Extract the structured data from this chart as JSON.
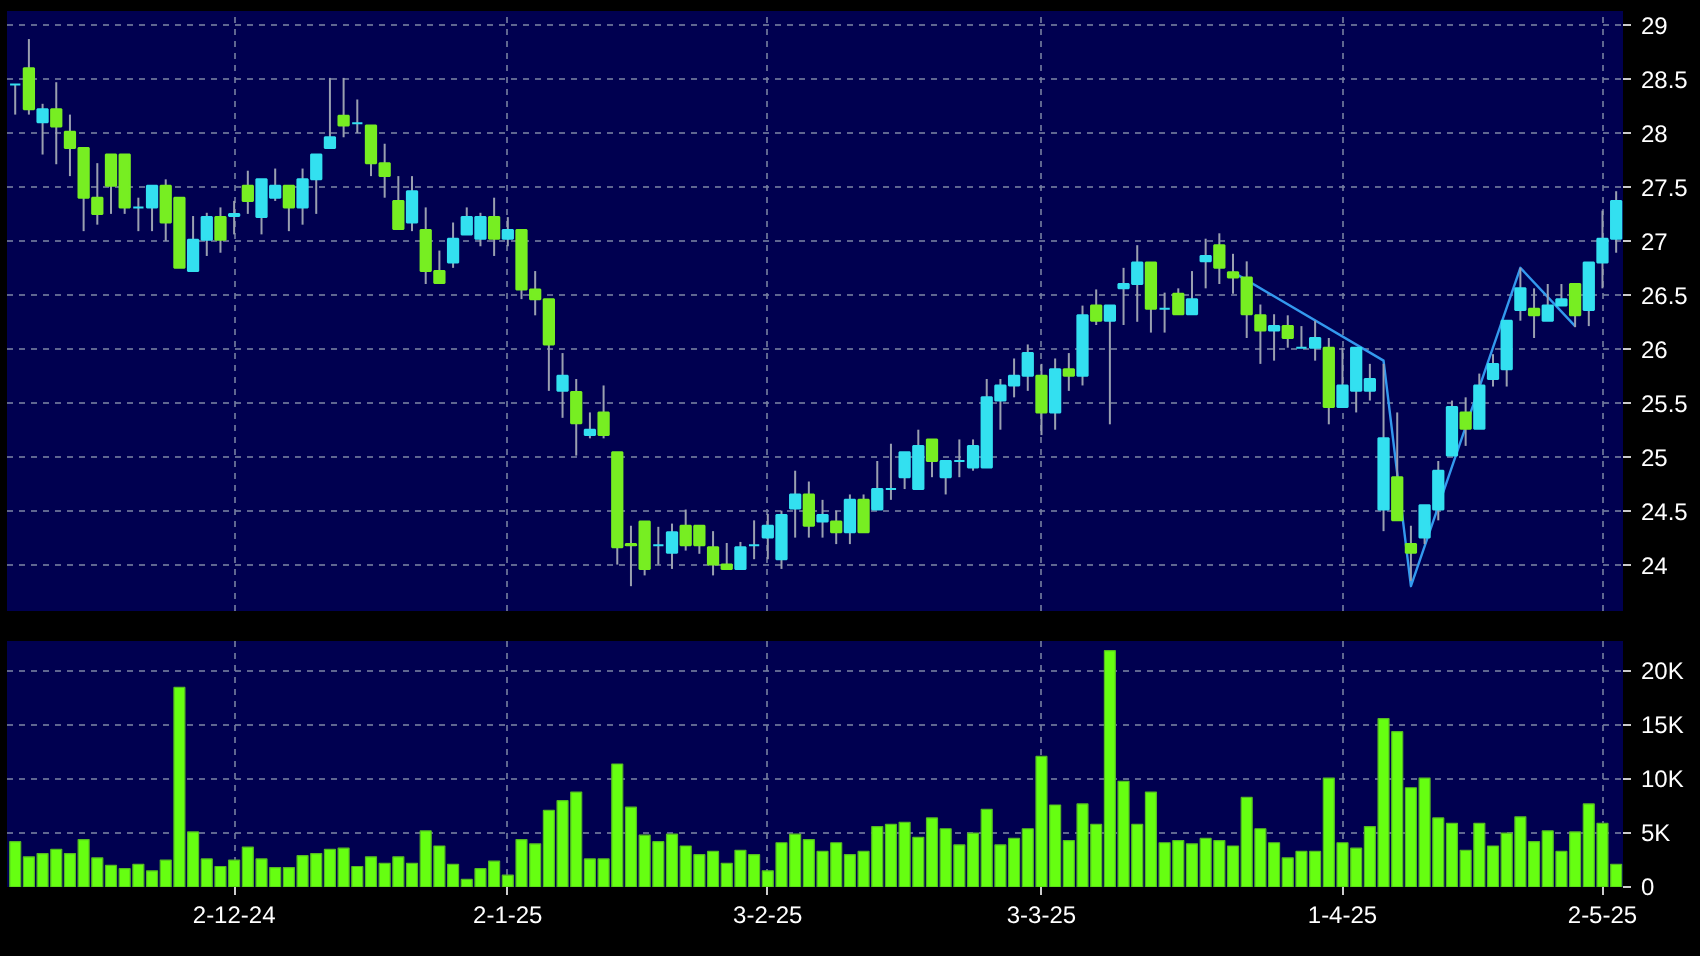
{
  "chart_data": [
    {
      "type": "candlestick",
      "categories": [
        null,
        null,
        null,
        null,
        null,
        null,
        null,
        null,
        null,
        null,
        null,
        null,
        null,
        null,
        null,
        null,
        null,
        null,
        null,
        null,
        null,
        null,
        null,
        null,
        null,
        null,
        null,
        null,
        null,
        null,
        null,
        null,
        null,
        null,
        null,
        null,
        null,
        null,
        null,
        null,
        null,
        null,
        null,
        null,
        null,
        null,
        null,
        null,
        null,
        null,
        null,
        null,
        null,
        null,
        null,
        null,
        null,
        null,
        null,
        null,
        null,
        null,
        null,
        null,
        null,
        null,
        null,
        null,
        null,
        null,
        null,
        null,
        null,
        null,
        null,
        null,
        null,
        null,
        null,
        null,
        null,
        null,
        null,
        null,
        null,
        null,
        null,
        null,
        null,
        null,
        null,
        null,
        null,
        null,
        null,
        null,
        null,
        null,
        null,
        null,
        null,
        null,
        null,
        null,
        null,
        null,
        null,
        null,
        null,
        null,
        null,
        null,
        null,
        null,
        null,
        null,
        null,
        null
      ],
      "ohlc": [
        [
          28.45,
          28.45,
          28.17,
          28.45
        ],
        [
          28.6,
          28.87,
          28.17,
          28.22
        ],
        [
          28.1,
          28.27,
          27.8,
          28.22
        ],
        [
          28.22,
          28.47,
          27.71,
          28.06
        ],
        [
          28.01,
          28.17,
          27.6,
          27.86
        ],
        [
          27.86,
          27.86,
          27.09,
          27.4
        ],
        [
          27.4,
          27.72,
          27.15,
          27.25
        ],
        [
          27.8,
          27.8,
          27.25,
          27.51
        ],
        [
          27.8,
          27.8,
          27.25,
          27.31
        ],
        [
          27.31,
          27.4,
          27.09,
          27.31
        ],
        [
          27.31,
          27.51,
          27.09,
          27.51
        ],
        [
          27.51,
          27.57,
          27.0,
          27.17
        ],
        [
          27.4,
          27.4,
          26.75,
          26.75
        ],
        [
          26.72,
          27.23,
          26.72,
          27.01
        ],
        [
          27.01,
          27.26,
          26.86,
          27.22
        ],
        [
          27.22,
          27.31,
          26.89,
          27.01
        ],
        [
          27.23,
          27.37,
          27.06,
          27.25
        ],
        [
          27.51,
          27.65,
          27.25,
          27.37
        ],
        [
          27.22,
          27.57,
          27.06,
          27.57
        ],
        [
          27.4,
          27.67,
          27.37,
          27.51
        ],
        [
          27.51,
          27.51,
          27.09,
          27.31
        ],
        [
          27.31,
          27.67,
          27.15,
          27.57
        ],
        [
          27.57,
          27.8,
          27.25,
          27.8
        ],
        [
          27.86,
          28.51,
          27.86,
          27.96
        ],
        [
          28.16,
          28.51,
          27.96,
          28.07
        ],
        [
          28.09,
          28.31,
          28.0,
          28.09
        ],
        [
          28.07,
          28.07,
          27.6,
          27.72
        ],
        [
          27.72,
          27.9,
          27.4,
          27.6
        ],
        [
          27.37,
          27.6,
          27.11,
          27.11
        ],
        [
          27.17,
          27.6,
          27.09,
          27.46
        ],
        [
          27.1,
          27.31,
          26.6,
          26.72
        ],
        [
          26.72,
          26.91,
          26.61,
          26.61
        ],
        [
          26.8,
          27.17,
          26.75,
          27.02
        ],
        [
          27.06,
          27.31,
          27.06,
          27.22
        ],
        [
          27.02,
          27.26,
          26.95,
          27.22
        ],
        [
          27.22,
          27.4,
          26.86,
          27.02
        ],
        [
          27.02,
          27.22,
          26.95,
          27.1
        ],
        [
          27.1,
          27.1,
          26.46,
          26.55
        ],
        [
          26.55,
          26.72,
          26.31,
          26.46
        ],
        [
          26.46,
          26.46,
          25.61,
          26.04
        ],
        [
          25.61,
          25.96,
          25.36,
          25.75
        ],
        [
          25.6,
          25.72,
          25.01,
          25.31
        ],
        [
          25.2,
          25.41,
          25.17,
          25.25
        ],
        [
          25.41,
          25.66,
          25.17,
          25.2
        ],
        [
          25.04,
          25.04,
          24.0,
          24.16
        ],
        [
          24.19,
          24.36,
          23.8,
          24.18
        ],
        [
          24.4,
          24.4,
          23.9,
          23.96
        ],
        [
          24.18,
          24.35,
          24.0,
          24.18
        ],
        [
          24.11,
          24.38,
          23.96,
          24.3
        ],
        [
          24.36,
          24.51,
          24.13,
          24.18
        ],
        [
          24.36,
          24.36,
          24.1,
          24.18
        ],
        [
          24.16,
          24.31,
          23.9,
          24.0
        ],
        [
          24.0,
          24.2,
          23.96,
          23.96
        ],
        [
          23.96,
          24.21,
          23.96,
          24.16
        ],
        [
          24.18,
          24.41,
          24.05,
          24.18
        ],
        [
          24.25,
          24.47,
          24.05,
          24.36
        ],
        [
          24.05,
          24.5,
          23.96,
          24.46
        ],
        [
          24.52,
          24.87,
          24.25,
          24.65
        ],
        [
          24.65,
          24.77,
          24.25,
          24.36
        ],
        [
          24.4,
          24.6,
          24.25,
          24.46
        ],
        [
          24.4,
          24.5,
          24.19,
          24.3
        ],
        [
          24.3,
          24.65,
          24.19,
          24.6
        ],
        [
          24.6,
          24.65,
          24.3,
          24.3
        ],
        [
          24.51,
          24.96,
          24.51,
          24.7
        ],
        [
          24.7,
          25.12,
          24.6,
          24.7
        ],
        [
          24.81,
          25.04,
          24.7,
          25.04
        ],
        [
          24.7,
          25.25,
          24.7,
          25.1
        ],
        [
          25.16,
          25.16,
          24.81,
          24.96
        ],
        [
          24.81,
          24.96,
          24.65,
          24.96
        ],
        [
          24.96,
          25.16,
          24.81,
          24.96
        ],
        [
          24.9,
          25.16,
          24.87,
          25.1
        ],
        [
          24.9,
          25.72,
          24.9,
          25.55
        ],
        [
          25.52,
          25.72,
          25.25,
          25.66
        ],
        [
          25.66,
          25.91,
          25.55,
          25.75
        ],
        [
          25.75,
          26.04,
          25.61,
          25.96
        ],
        [
          25.75,
          25.86,
          25.2,
          25.41
        ],
        [
          25.41,
          25.91,
          25.25,
          25.81
        ],
        [
          25.81,
          25.96,
          25.61,
          25.75
        ],
        [
          25.75,
          26.4,
          25.66,
          26.31
        ],
        [
          26.4,
          26.55,
          26.22,
          26.26
        ],
        [
          26.26,
          26.4,
          25.3,
          26.4
        ],
        [
          26.56,
          26.75,
          26.22,
          26.6
        ],
        [
          26.6,
          26.96,
          26.25,
          26.8
        ],
        [
          26.8,
          26.8,
          26.15,
          26.37
        ],
        [
          26.37,
          26.52,
          26.15,
          26.37
        ],
        [
          26.51,
          26.56,
          26.32,
          26.32
        ],
        [
          26.32,
          26.72,
          26.32,
          26.46
        ],
        [
          26.81,
          27.02,
          26.56,
          26.86
        ],
        [
          26.96,
          27.07,
          26.6,
          26.75
        ],
        [
          26.71,
          26.88,
          26.51,
          26.66
        ],
        [
          26.66,
          26.81,
          26.1,
          26.32
        ],
        [
          26.31,
          26.41,
          25.86,
          26.17
        ],
        [
          26.17,
          26.32,
          25.89,
          26.21
        ],
        [
          26.21,
          26.31,
          26.01,
          26.1
        ],
        [
          26.01,
          26.21,
          26.01,
          26.01
        ],
        [
          26.01,
          26.26,
          25.89,
          26.1
        ],
        [
          26.01,
          26.1,
          25.3,
          25.46
        ],
        [
          25.46,
          26.01,
          25.46,
          25.66
        ],
        [
          25.61,
          26.01,
          25.41,
          26.01
        ],
        [
          25.61,
          25.86,
          25.52,
          25.72
        ],
        [
          24.51,
          25.86,
          24.31,
          25.17
        ],
        [
          24.81,
          25.41,
          24.41,
          24.41
        ],
        [
          24.19,
          24.36,
          23.85,
          24.11
        ],
        [
          24.25,
          24.55,
          24.19,
          24.55
        ],
        [
          24.51,
          24.96,
          24.41,
          24.87
        ],
        [
          25.01,
          25.52,
          25.01,
          25.46
        ],
        [
          25.41,
          25.55,
          25.1,
          25.26
        ],
        [
          25.26,
          25.77,
          25.26,
          25.66
        ],
        [
          25.72,
          25.95,
          25.65,
          25.86
        ],
        [
          25.81,
          26.26,
          25.65,
          26.26
        ],
        [
          26.36,
          26.75,
          26.26,
          26.56
        ],
        [
          26.37,
          26.56,
          26.1,
          26.31
        ],
        [
          26.26,
          26.6,
          26.26,
          26.4
        ],
        [
          26.4,
          26.6,
          26.4,
          26.46
        ],
        [
          26.6,
          26.6,
          26.2,
          26.31
        ],
        [
          26.36,
          26.8,
          26.21,
          26.8
        ],
        [
          26.8,
          27.28,
          26.56,
          27.02
        ],
        [
          27.02,
          27.46,
          26.89,
          27.37
        ]
      ],
      "colors": [
        "#33e0f0",
        "#77ee22",
        "#33e0f0",
        "#77ee22",
        "#77ee22",
        "#77ee22",
        "#77ee22",
        "#77ee22",
        "#77ee22",
        "#33e0f0",
        "#33e0f0",
        "#77ee22",
        "#77ee22",
        "#33e0f0",
        "#33e0f0",
        "#77ee22",
        "#33e0f0",
        "#77ee22",
        "#33e0f0",
        "#33e0f0",
        "#77ee22",
        "#33e0f0",
        "#33e0f0",
        "#33e0f0",
        "#77ee22",
        "#33e0f0",
        "#77ee22",
        "#77ee22",
        "#77ee22",
        "#33e0f0",
        "#77ee22",
        "#77ee22",
        "#33e0f0",
        "#33e0f0",
        "#33e0f0",
        "#77ee22",
        "#33e0f0",
        "#77ee22",
        "#77ee22",
        "#77ee22",
        "#33e0f0",
        "#77ee22",
        "#33e0f0",
        "#77ee22",
        "#77ee22",
        "#77ee22",
        "#77ee22",
        "#33e0f0",
        "#33e0f0",
        "#77ee22",
        "#77ee22",
        "#77ee22",
        "#77ee22",
        "#33e0f0",
        "#33e0f0",
        "#33e0f0",
        "#33e0f0",
        "#33e0f0",
        "#77ee22",
        "#33e0f0",
        "#77ee22",
        "#33e0f0",
        "#77ee22",
        "#33e0f0",
        "#33e0f0",
        "#33e0f0",
        "#33e0f0",
        "#77ee22",
        "#33e0f0",
        "#33e0f0",
        "#33e0f0",
        "#33e0f0",
        "#33e0f0",
        "#33e0f0",
        "#33e0f0",
        "#77ee22",
        "#33e0f0",
        "#77ee22",
        "#33e0f0",
        "#77ee22",
        "#33e0f0",
        "#33e0f0",
        "#33e0f0",
        "#77ee22",
        "#33e0f0",
        "#77ee22",
        "#33e0f0",
        "#33e0f0",
        "#77ee22",
        "#77ee22",
        "#77ee22",
        "#77ee22",
        "#33e0f0",
        "#77ee22",
        "#33e0f0",
        "#33e0f0",
        "#77ee22",
        "#33e0f0",
        "#33e0f0",
        "#33e0f0",
        "#33e0f0",
        "#77ee22",
        "#77ee22",
        "#33e0f0",
        "#33e0f0",
        "#33e0f0",
        "#77ee22",
        "#33e0f0",
        "#33e0f0",
        "#33e0f0",
        "#33e0f0",
        "#77ee22",
        "#33e0f0",
        "#33e0f0",
        "#77ee22",
        "#33e0f0",
        "#33e0f0",
        "#33e0f0"
      ],
      "series": [
        {
          "type": "line",
          "color": "#3399ee",
          "values": [
            null,
            null,
            null,
            null,
            null,
            null,
            null,
            null,
            null,
            null,
            null,
            null,
            null,
            null,
            null,
            null,
            null,
            null,
            null,
            null,
            null,
            null,
            null,
            null,
            null,
            null,
            null,
            null,
            null,
            null,
            null,
            null,
            null,
            null,
            null,
            null,
            null,
            null,
            null,
            null,
            null,
            null,
            null,
            null,
            null,
            null,
            null,
            null,
            null,
            null,
            null,
            null,
            null,
            null,
            null,
            null,
            null,
            null,
            null,
            null,
            null,
            null,
            null,
            null,
            null,
            null,
            null,
            null,
            null,
            null,
            null,
            null,
            null,
            null,
            null,
            null,
            null,
            null,
            null,
            null,
            null,
            null,
            null,
            null,
            null,
            null,
            null,
            null,
            null,
            26.71,
            null,
            null,
            null,
            null,
            null,
            null,
            null,
            null,
            null,
            null,
            25.89,
            null,
            23.8,
            null,
            null,
            null,
            null,
            null,
            null,
            null,
            26.75,
            null,
            null,
            null,
            26.21,
            null,
            null,
            null
          ]
        }
      ],
      "ylim": [
        23.57,
        29.13
      ],
      "yticks": [
        24,
        24.5,
        25,
        25.5,
        26,
        26.5,
        27,
        27.5,
        28,
        28.5,
        29
      ],
      "grid": true
    },
    {
      "type": "bar",
      "categories": [
        null,
        null,
        null,
        null,
        null,
        null,
        null,
        null,
        null,
        null,
        null,
        null,
        null,
        null,
        null,
        null,
        "2-12-24",
        null,
        null,
        null,
        null,
        null,
        null,
        null,
        null,
        null,
        null,
        null,
        null,
        null,
        null,
        null,
        null,
        null,
        null,
        null,
        "2-1-25",
        null,
        null,
        null,
        null,
        null,
        null,
        null,
        null,
        null,
        null,
        null,
        null,
        null,
        null,
        null,
        null,
        null,
        null,
        "3-2-25",
        null,
        null,
        null,
        null,
        null,
        null,
        null,
        null,
        null,
        null,
        null,
        null,
        null,
        null,
        null,
        null,
        null,
        null,
        null,
        "3-3-25",
        null,
        null,
        null,
        null,
        null,
        null,
        null,
        null,
        null,
        null,
        null,
        null,
        null,
        null,
        null,
        null,
        null,
        null,
        null,
        null,
        null,
        "1-4-25",
        null,
        null,
        null,
        null,
        null,
        null,
        null,
        null,
        null,
        null,
        null,
        null,
        null,
        null,
        null,
        null,
        null,
        null,
        "2-5-25",
        null
      ],
      "values": [
        4200,
        2800,
        3100,
        3500,
        3100,
        4400,
        2700,
        2000,
        1700,
        2100,
        1500,
        2500,
        18500,
        5100,
        2600,
        1900,
        2500,
        3700,
        2600,
        1800,
        1800,
        2900,
        3100,
        3500,
        3600,
        1900,
        2800,
        2200,
        2800,
        2200,
        5200,
        3800,
        2100,
        700,
        1700,
        2400,
        1100,
        4400,
        4000,
        7100,
        8000,
        8800,
        2600,
        2600,
        11400,
        7400,
        4800,
        4200,
        4900,
        3800,
        3000,
        3300,
        2200,
        3400,
        3000,
        1500,
        4100,
        4900,
        4400,
        3300,
        4100,
        3000,
        3300,
        5600,
        5800,
        6000,
        4600,
        6400,
        5400,
        3900,
        5000,
        7200,
        3900,
        4500,
        5400,
        12100,
        7600,
        4300,
        7700,
        5800,
        21900,
        9800,
        5800,
        8800,
        4100,
        4300,
        4000,
        4500,
        4300,
        3800,
        8300,
        5400,
        4100,
        2700,
        3300,
        3300,
        10100,
        4100,
        3600,
        5600,
        15600,
        14400,
        9200,
        10100,
        6400,
        5900,
        3400,
        5900,
        3800,
        5000,
        6500,
        4200,
        5200,
        3300,
        5100,
        7700,
        5900,
        2100
      ],
      "color": "#66ff11",
      "ylim": [
        0,
        22800
      ],
      "yticks": [
        0,
        {
          "value": 5000,
          "label": "5K"
        },
        {
          "value": 10000,
          "label": "10K"
        },
        {
          "value": 15000,
          "label": "15K"
        },
        {
          "value": 20000,
          "label": "20K"
        }
      ],
      "grid": true
    }
  ]
}
